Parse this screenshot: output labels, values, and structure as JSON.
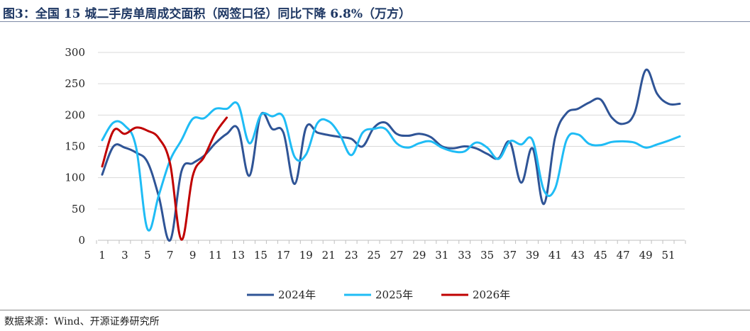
{
  "title": "图3：全国 15 城二手房单周成交面积（网签口径）同比下降 6.8%（万方）",
  "source": "数据来源：Wind、开源证券研究所",
  "chart_data": {
    "type": "line",
    "title": "图3：全国 15 城二手房单周成交面积（网签口径）同比下降 6.8%（万方）",
    "xlabel": "",
    "ylabel": "",
    "ylim": [
      0,
      300
    ],
    "yticks": [
      0,
      50,
      100,
      150,
      200,
      250,
      300
    ],
    "xlim": [
      1,
      52
    ],
    "xticks": [
      1,
      3,
      5,
      7,
      9,
      11,
      13,
      15,
      17,
      19,
      21,
      23,
      25,
      27,
      29,
      31,
      33,
      35,
      37,
      39,
      41,
      43,
      45,
      47,
      49,
      51
    ],
    "grid": true,
    "legend": "bottom-center",
    "series": [
      {
        "name": "2024年",
        "color": "#2f5496",
        "x": [
          1,
          2,
          3,
          4,
          5,
          6,
          7,
          8,
          9,
          10,
          11,
          12,
          13,
          14,
          15,
          16,
          17,
          18,
          19,
          20,
          21,
          22,
          23,
          24,
          25,
          26,
          27,
          28,
          29,
          30,
          31,
          32,
          33,
          34,
          35,
          36,
          37,
          38,
          39,
          40,
          41,
          42,
          43,
          44,
          45,
          46,
          47,
          48,
          49,
          50,
          51,
          52
        ],
        "values": [
          105,
          150,
          148,
          140,
          125,
          70,
          0,
          110,
          123,
          135,
          155,
          170,
          178,
          103,
          200,
          178,
          172,
          90,
          180,
          172,
          168,
          165,
          162,
          150,
          180,
          188,
          170,
          167,
          170,
          165,
          150,
          147,
          150,
          147,
          138,
          131,
          157,
          92,
          147,
          58,
          165,
          203,
          210,
          220,
          225,
          196,
          186,
          203,
          272,
          234,
          218,
          218
        ]
      },
      {
        "name": "2025年",
        "color": "#1fbcf5",
        "x": [
          1,
          2,
          3,
          4,
          5,
          6,
          7,
          8,
          9,
          10,
          11,
          12,
          13,
          14,
          15,
          16,
          17,
          18,
          19,
          20,
          21,
          22,
          23,
          24,
          25,
          26,
          27,
          28,
          29,
          30,
          31,
          32,
          33,
          34,
          35,
          36,
          37,
          38,
          39,
          40,
          41,
          42,
          43,
          44,
          45,
          46,
          47,
          48,
          49,
          50,
          51,
          52
        ],
        "values": [
          160,
          188,
          183,
          148,
          18,
          72,
          128,
          160,
          194,
          195,
          210,
          210,
          217,
          155,
          200,
          198,
          197,
          133,
          137,
          187,
          190,
          168,
          136,
          172,
          178,
          178,
          155,
          148,
          155,
          158,
          148,
          142,
          142,
          156,
          148,
          130,
          158,
          153,
          160,
          80,
          83,
          160,
          169,
          154,
          152,
          157,
          158,
          156,
          148,
          153,
          159,
          166
        ]
      },
      {
        "name": "2026年",
        "color": "#c00000",
        "x": [
          1,
          2,
          3,
          4,
          5,
          6,
          7,
          8,
          9,
          10,
          11,
          12
        ],
        "values": [
          118,
          175,
          170,
          180,
          175,
          163,
          122,
          1,
          103,
          133,
          171,
          196
        ]
      }
    ]
  }
}
